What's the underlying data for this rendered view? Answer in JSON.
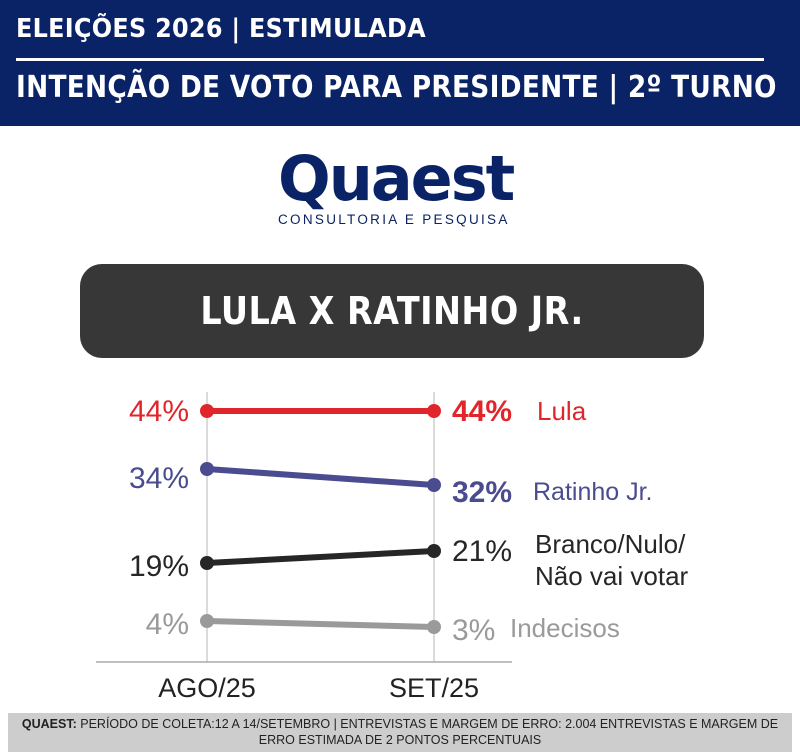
{
  "header": {
    "line1": "ELEIÇÕES 2026 | ESTIMULADA",
    "line2": "INTENÇÃO DE VOTO PARA PRESIDENTE | 2º TURNO"
  },
  "logo": {
    "word": "Quaest",
    "subtitle": "CONSULTORIA E PESQUISA"
  },
  "banner": {
    "title": "LULA X RATINHO JR."
  },
  "chart_data": {
    "type": "line",
    "categories": [
      "AGO/25",
      "SET/25"
    ],
    "series": [
      {
        "name": "Lula",
        "values": [
          44,
          44
        ],
        "labels": [
          "44%",
          "44%"
        ],
        "color": "#e0262b"
      },
      {
        "name": "Ratinho Jr.",
        "values": [
          34,
          32
        ],
        "labels": [
          "34%",
          "32%"
        ],
        "color": "#4b4b8f"
      },
      {
        "name": "Branco/Nulo/ Não vai votar",
        "values": [
          19,
          21
        ],
        "labels": [
          "19%",
          "21%"
        ],
        "color": "#262626"
      },
      {
        "name": "Indecisos",
        "values": [
          4,
          3
        ],
        "labels": [
          "4%",
          "3%"
        ],
        "color": "#9a9a9a"
      }
    ],
    "ylim": [
      0,
      50
    ],
    "grid": "vertical"
  },
  "footer": {
    "source": "QUAEST:",
    "text": "PERÍODO DE COLETA:12 A 14/SETEMBRO | ENTREVISTAS E MARGEM DE ERRO: 2.004 ENTREVISTAS E MARGEM DE ERRO ESTIMADA DE 2 PONTOS PERCENTUAIS"
  }
}
